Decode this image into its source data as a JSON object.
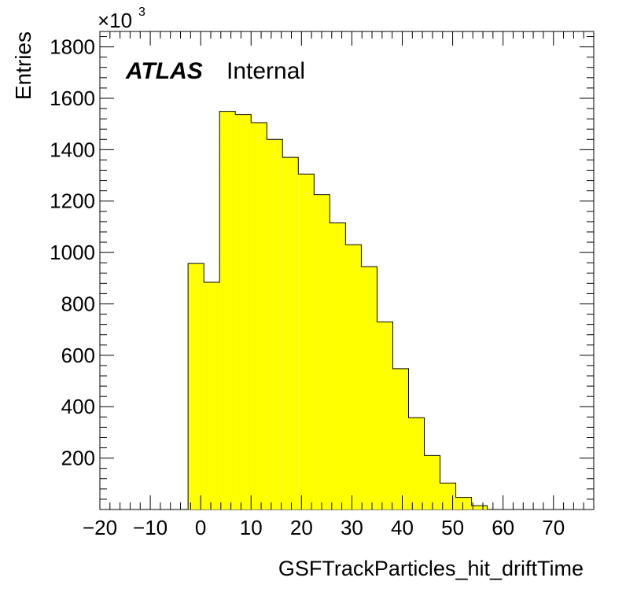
{
  "chart_data": {
    "type": "bar",
    "title": "",
    "xlabel": "GSFTrackParticles_hit_driftTime",
    "ylabel": "Entries",
    "y_multiplier_label": {
      "base": "×10",
      "exponent": "3"
    },
    "annotation": {
      "experiment": "ATLAS",
      "status": "Internal"
    },
    "xlim": [
      -20,
      78
    ],
    "ylim": [
      0,
      1860
    ],
    "x_ticks": [
      -20,
      -10,
      0,
      10,
      20,
      30,
      40,
      50,
      60,
      70
    ],
    "x_tick_labels": [
      "−20",
      "−10",
      "0",
      "10",
      "20",
      "30",
      "40",
      "50",
      "60",
      "70"
    ],
    "y_ticks": [
      200,
      400,
      600,
      800,
      1000,
      1200,
      1400,
      1600,
      1800
    ],
    "y_tick_labels": [
      "200",
      "400",
      "600",
      "800",
      "1000",
      "1200",
      "1400",
      "1600",
      "1800"
    ],
    "bin_width": 3.125,
    "bin_edges_start": -2.5,
    "values": [
      957,
      884,
      1549,
      1537,
      1505,
      1440,
      1370,
      1305,
      1225,
      1115,
      1030,
      945,
      730,
      548,
      357,
      210,
      103,
      47,
      15
    ],
    "fill_color": "#ffff00",
    "line_color": "#000000",
    "grid": false
  }
}
